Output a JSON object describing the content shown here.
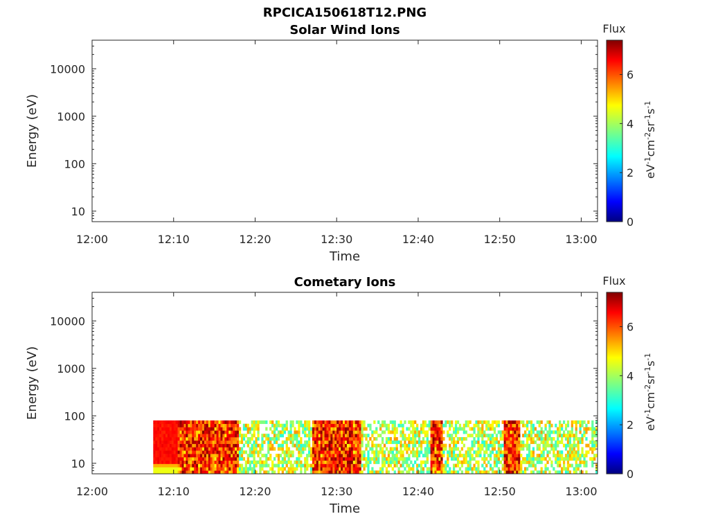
{
  "figure": {
    "title": "RPCICA150618T12.PNG"
  },
  "chart_data": [
    {
      "type": "heatmap",
      "title": "Solar Wind Ions",
      "xlabel": "Time",
      "ylabel": "Energy (eV)",
      "x_ticks": [
        "12:00",
        "12:10",
        "12:20",
        "12:30",
        "12:40",
        "12:50",
        "13:00"
      ],
      "xlim_minutes": [
        0,
        62
      ],
      "y_ticks": [
        10,
        100,
        1000,
        10000
      ],
      "ylim": [
        6,
        40000
      ],
      "y_scale": "log",
      "colorbar": {
        "label": "Flux",
        "units": "eV-1cm-2sr-1s-1",
        "ticks": [
          0,
          2,
          4,
          6
        ],
        "range": [
          0,
          7.4
        ],
        "colormap": "jet"
      },
      "data": "empty"
    },
    {
      "type": "heatmap",
      "title": "Cometary Ions",
      "xlabel": "Time",
      "ylabel": "Energy (eV)",
      "x_ticks": [
        "12:00",
        "12:10",
        "12:20",
        "12:30",
        "12:40",
        "12:50",
        "13:00"
      ],
      "xlim_minutes": [
        0,
        62
      ],
      "y_ticks": [
        10,
        100,
        1000,
        10000
      ],
      "ylim": [
        6,
        40000
      ],
      "y_scale": "log",
      "colorbar": {
        "label": "Flux",
        "units": "eV-1cm-2sr-1s-1",
        "ticks": [
          0,
          2,
          4,
          6
        ],
        "range": [
          0,
          7.4
        ],
        "colormap": "jet"
      },
      "data": {
        "time_start_minutes": 7.5,
        "time_end_minutes": 62,
        "energy_range": [
          6,
          80
        ],
        "high_flux_intervals_minutes": [
          [
            7.5,
            10.5
          ],
          [
            10.5,
            18
          ],
          [
            27,
            33
          ],
          [
            41.5,
            43
          ],
          [
            50.5,
            52.5
          ]
        ]
      }
    }
  ]
}
